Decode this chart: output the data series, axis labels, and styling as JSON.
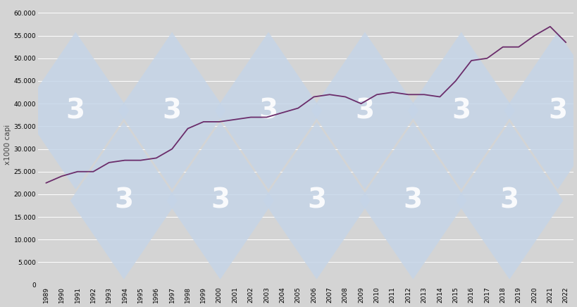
{
  "years": [
    1989,
    1990,
    1991,
    1992,
    1993,
    1994,
    1995,
    1996,
    1997,
    1998,
    1999,
    2000,
    2001,
    2002,
    2003,
    2004,
    2005,
    2006,
    2007,
    2008,
    2009,
    2010,
    2011,
    2012,
    2013,
    2014,
    2015,
    2016,
    2017,
    2018,
    2019,
    2020,
    2021,
    2022
  ],
  "values": [
    22500,
    24000,
    25000,
    25000,
    27000,
    27500,
    27500,
    28000,
    30000,
    34500,
    36000,
    36000,
    36500,
    37000,
    37000,
    38000,
    39000,
    41500,
    42000,
    41500,
    40000,
    42000,
    42500,
    42000,
    42000,
    41500,
    45000,
    49500,
    50000,
    52500,
    52500,
    55000,
    57000,
    53500
  ],
  "line_color": "#6b2d6b",
  "bg_color": "#d4d4d4",
  "plot_bg_color": "#d4d4d4",
  "grid_color": "#ffffff",
  "ylabel": "x1000 capi",
  "ylim": [
    0,
    62000
  ],
  "yticks": [
    0,
    5000,
    10000,
    15000,
    20000,
    25000,
    30000,
    35000,
    40000,
    45000,
    50000,
    55000,
    60000
  ],
  "tick_fontsize": 6.5,
  "ylabel_fontsize": 7.5,
  "line_width": 1.3,
  "watermark_text": "3",
  "watermark_diamond_color": "#c5d5e8",
  "watermark_text_color": "#ffffff",
  "watermark_alpha": 0.85
}
